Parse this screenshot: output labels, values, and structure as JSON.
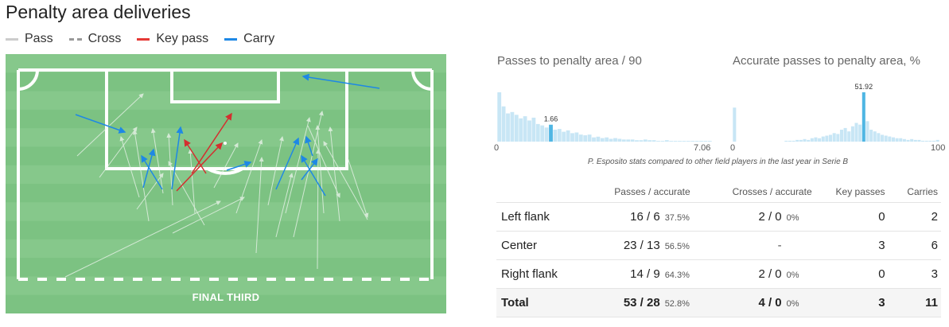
{
  "title": "Penalty area deliveries",
  "legend": [
    {
      "label": "Pass",
      "color": "#cccccc",
      "style": "solid"
    },
    {
      "label": "Cross",
      "color": "#999999",
      "style": "dashed"
    },
    {
      "label": "Key pass",
      "color": "#e53935",
      "style": "solid"
    },
    {
      "label": "Carry",
      "color": "#1e88e5",
      "style": "solid"
    }
  ],
  "pitch": {
    "label": "FINAL THIRD",
    "grass_light": "#86c88b",
    "grass_dark": "#7cc282"
  },
  "hist_left": {
    "title": "Passes to penalty area / 90",
    "x_min": "0",
    "x_max": "7.06",
    "player_value": "1.66",
    "bar_color": "#c8e6f5",
    "player_bar_color": "#4fb6e3"
  },
  "hist_right": {
    "title": "Accurate passes to penalty area, %",
    "x_min": "0",
    "x_max": "100",
    "player_value": "51.92",
    "bar_color": "#c8e6f5",
    "player_bar_color": "#4fb6e3"
  },
  "note": "P. Esposito stats compared to other field players in the last year in Serie B",
  "table": {
    "headers": [
      "",
      "Passes / accurate",
      "Crosses / accurate",
      "Key passes",
      "Carries"
    ],
    "rows": [
      {
        "label": "Left flank",
        "passes": "16 / 6",
        "passes_pct": "37.5%",
        "crosses": "2 / 0",
        "crosses_pct": "0%",
        "key_passes": "0",
        "carries": "2"
      },
      {
        "label": "Center",
        "passes": "23 / 13",
        "passes_pct": "56.5%",
        "crosses": "-",
        "crosses_pct": "",
        "key_passes": "3",
        "carries": "6"
      },
      {
        "label": "Right flank",
        "passes": "14 / 9",
        "passes_pct": "64.3%",
        "crosses": "2 / 0",
        "crosses_pct": "0%",
        "key_passes": "0",
        "carries": "3"
      }
    ],
    "total": {
      "label": "Total",
      "passes": "53 / 28",
      "passes_pct": "52.8%",
      "crosses": "4 / 0",
      "crosses_pct": "0%",
      "key_passes": "3",
      "carries": "11"
    }
  }
}
